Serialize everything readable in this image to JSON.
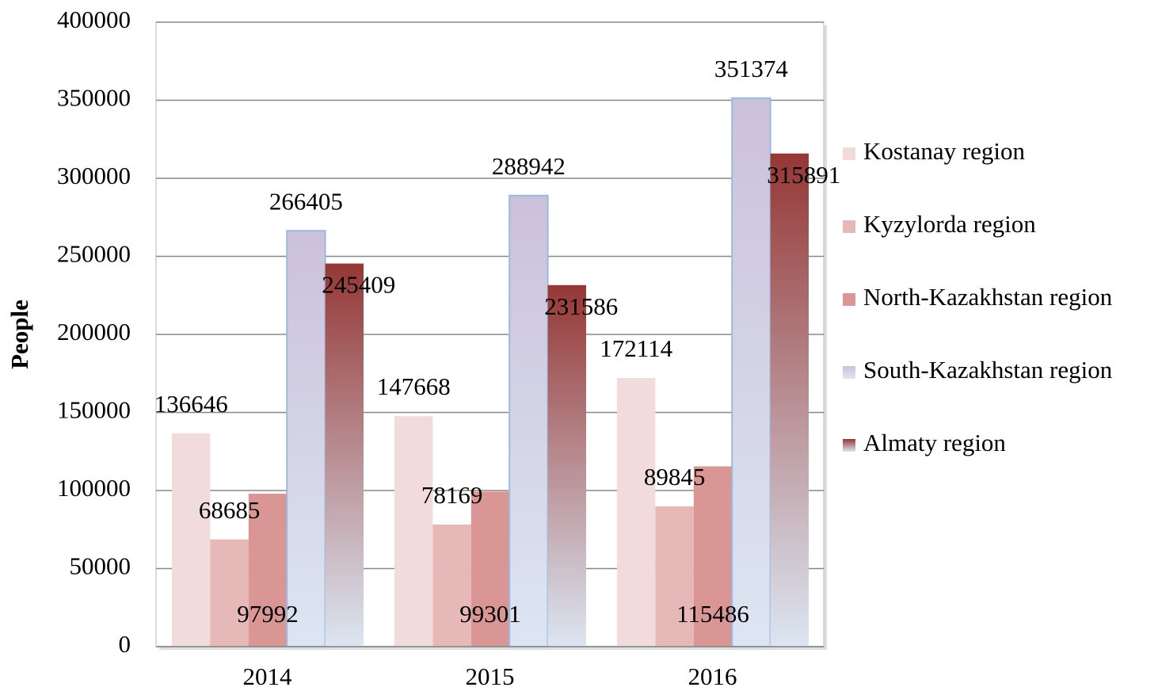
{
  "chart_data": {
    "type": "bar",
    "y_label": "People",
    "categories": [
      "2014",
      "2015",
      "2016"
    ],
    "series": [
      {
        "name": "Kostanay region",
        "color": "#f2dcdb",
        "label_position": "outside-end",
        "values": [
          136646,
          147668,
          172114
        ]
      },
      {
        "name": "Kyzylorda region",
        "color": "#e6b9b8",
        "label_position": "outside-end",
        "values": [
          68685,
          78169,
          89845
        ]
      },
      {
        "name": "North-Kazakhstan region",
        "color": "#d99694",
        "label_position": "inside-base",
        "values": [
          97992,
          99301,
          115486
        ]
      },
      {
        "name": "South-Kazakhstan region",
        "color": "#ccc1da",
        "gradient_end": "#dce6f2",
        "label_position": "outside-end",
        "values": [
          266405,
          288942,
          351374
        ]
      },
      {
        "name": "Almaty region",
        "color": "#953735",
        "gradient_end": "#dce6f2",
        "label_position": "inside-end",
        "values": [
          245409,
          231586,
          315891
        ]
      }
    ],
    "ylim": [
      0,
      400000
    ],
    "yticks": [
      0,
      50000,
      100000,
      150000,
      200000,
      250000,
      300000,
      350000,
      400000
    ],
    "grid": true,
    "legend": "right"
  }
}
